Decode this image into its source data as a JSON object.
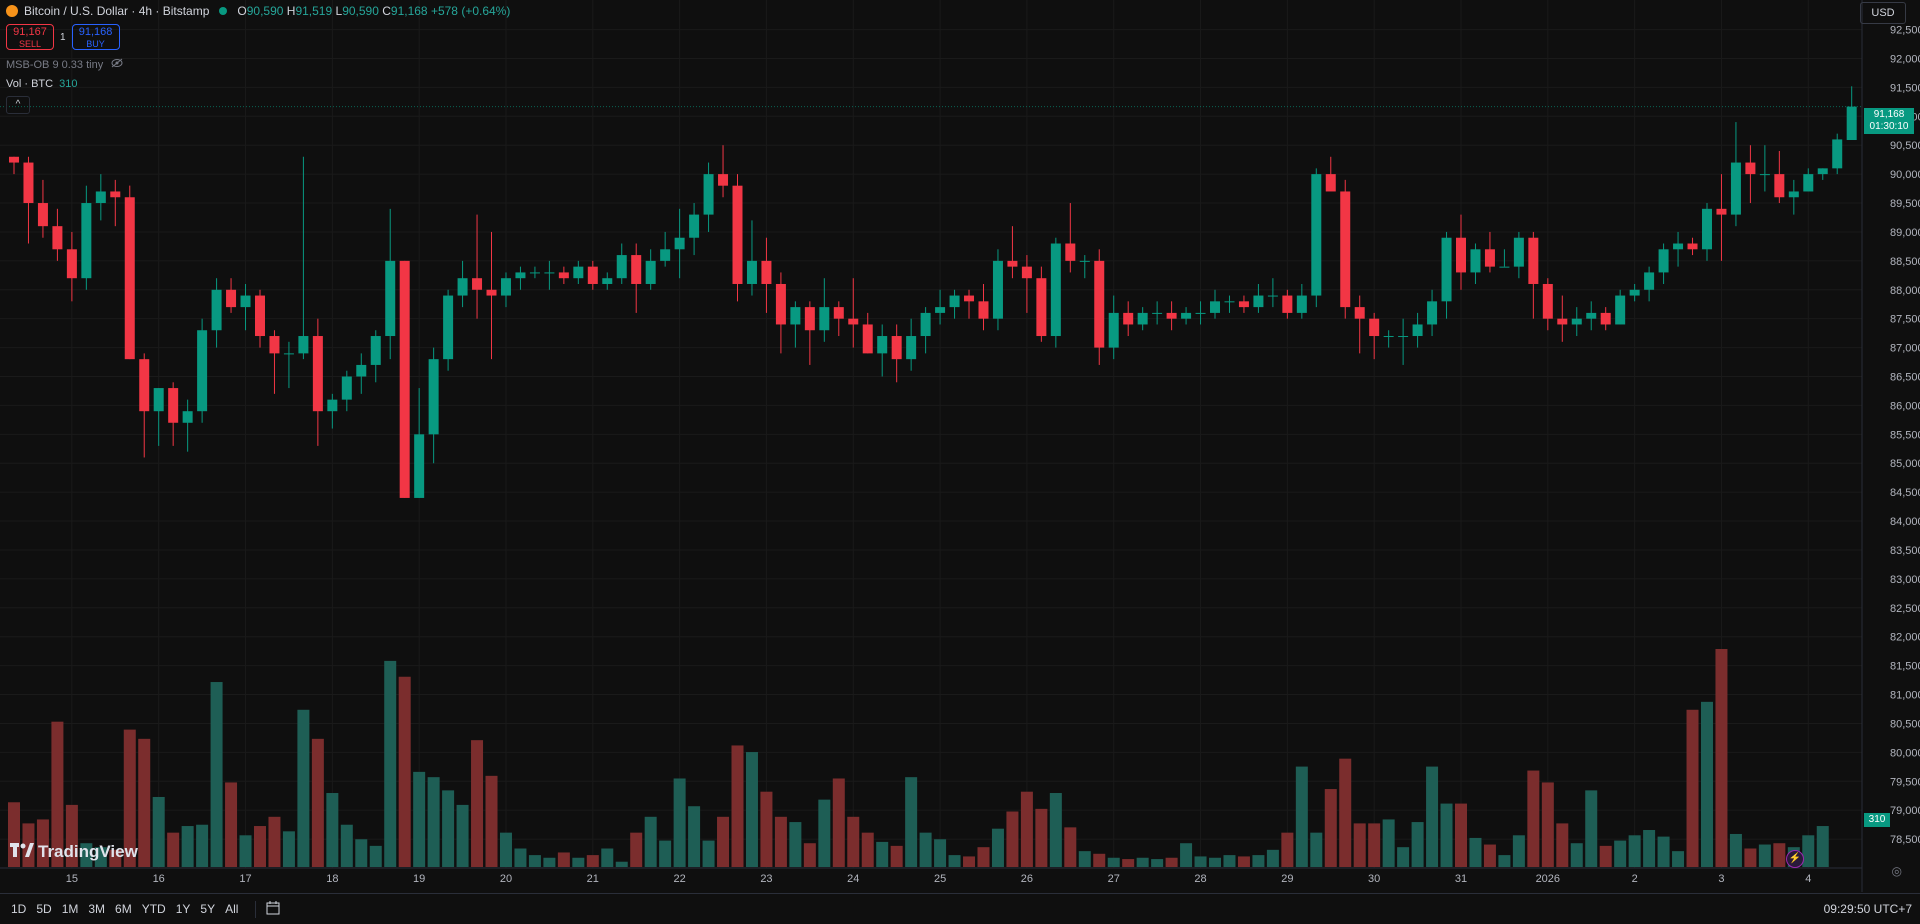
{
  "header": {
    "symbol": "Bitcoin / U.S. Dollar · 4h · Bitstamp",
    "o_label": "O",
    "o_val": "90,590",
    "h_label": "H",
    "h_val": "91,519",
    "l_label": "L",
    "l_val": "90,590",
    "c_label": "C",
    "c_val": "91,168",
    "change": "+578 (+0.64%)"
  },
  "trade": {
    "sell_price": "91,167",
    "sell_label": "SELL",
    "spread": "1",
    "buy_price": "91,168",
    "buy_label": "BUY"
  },
  "indicators": {
    "msb_label": "MSB-OB 9 0.33 tiny",
    "vol_label": "Vol · BTC",
    "vol_value": "310",
    "collapse_glyph": "^"
  },
  "currency": "USD",
  "last_price": {
    "price": "91,168",
    "countdown": "01:30:10"
  },
  "volume_tag": "310",
  "brand": "TradingView",
  "time_ranges": [
    "1D",
    "5D",
    "1M",
    "3M",
    "6M",
    "YTD",
    "1Y",
    "5Y",
    "All"
  ],
  "clock": "09:29:50 UTC+7",
  "colors": {
    "up": "#089981",
    "down": "#f23645",
    "up_vol": "#1e5e55",
    "down_vol": "#7b2d2d",
    "background": "#0f0f0f"
  },
  "chart_data": {
    "type": "candlestick",
    "timeframe": "4h",
    "ylim": [
      78000,
      92700
    ],
    "y_ticks": [
      78500,
      79000,
      79500,
      80000,
      80500,
      81000,
      81500,
      82000,
      82500,
      83000,
      83500,
      84000,
      84500,
      85000,
      85500,
      86000,
      86500,
      87000,
      87500,
      88000,
      88500,
      89000,
      89500,
      90000,
      90500,
      91000,
      91500,
      92000,
      92500
    ],
    "x_labels": [
      {
        "label": "15",
        "index": 4
      },
      {
        "label": "16",
        "index": 10
      },
      {
        "label": "17",
        "index": 16
      },
      {
        "label": "18",
        "index": 22
      },
      {
        "label": "19",
        "index": 28
      },
      {
        "label": "20",
        "index": 34
      },
      {
        "label": "21",
        "index": 40
      },
      {
        "label": "22",
        "index": 46
      },
      {
        "label": "23",
        "index": 52
      },
      {
        "label": "24",
        "index": 58
      },
      {
        "label": "25",
        "index": 64
      },
      {
        "label": "26",
        "index": 70
      },
      {
        "label": "27",
        "index": 76
      },
      {
        "label": "28",
        "index": 82
      },
      {
        "label": "29",
        "index": 88
      },
      {
        "label": "30",
        "index": 94
      },
      {
        "label": "31",
        "index": 100
      },
      {
        "label": "2026",
        "index": 106
      },
      {
        "label": "2",
        "index": 112
      },
      {
        "label": "3",
        "index": 118
      },
      {
        "label": "4",
        "index": 124
      }
    ],
    "candles": [
      [
        90300,
        90300,
        90000,
        90200
      ],
      [
        90200,
        90300,
        88800,
        89500
      ],
      [
        89500,
        89900,
        88900,
        89100
      ],
      [
        89100,
        89400,
        88500,
        88700
      ],
      [
        88700,
        89000,
        87800,
        88200
      ],
      [
        88200,
        89800,
        88000,
        89500
      ],
      [
        89500,
        90000,
        89200,
        89700
      ],
      [
        89700,
        89900,
        89100,
        89600
      ],
      [
        89600,
        89800,
        86800,
        86800
      ],
      [
        86800,
        86900,
        85100,
        85900
      ],
      [
        85900,
        86300,
        85300,
        86300
      ],
      [
        86300,
        86400,
        85300,
        85700
      ],
      [
        85700,
        86100,
        85200,
        85900
      ],
      [
        85900,
        87500,
        85700,
        87300
      ],
      [
        87300,
        88200,
        87000,
        88000
      ],
      [
        88000,
        88200,
        87600,
        87700
      ],
      [
        87700,
        88100,
        87300,
        87900
      ],
      [
        87900,
        88000,
        87000,
        87200
      ],
      [
        87200,
        87300,
        86200,
        86900
      ],
      [
        86900,
        87100,
        86300,
        86900
      ],
      [
        86900,
        90300,
        86800,
        87200
      ],
      [
        87200,
        87500,
        85300,
        85900
      ],
      [
        85900,
        86200,
        85600,
        86100
      ],
      [
        86100,
        86600,
        85900,
        86500
      ],
      [
        86500,
        86900,
        86200,
        86700
      ],
      [
        86700,
        87300,
        86400,
        87200
      ],
      [
        87200,
        89400,
        86800,
        88500
      ],
      [
        88500,
        88500,
        84400,
        84400
      ],
      [
        84400,
        86300,
        84400,
        85500
      ],
      [
        85500,
        87000,
        85000,
        86800
      ],
      [
        86800,
        88000,
        86600,
        87900
      ],
      [
        87900,
        88500,
        87700,
        88200
      ],
      [
        88200,
        89300,
        87500,
        88000
      ],
      [
        88000,
        89000,
        86800,
        87900
      ],
      [
        87900,
        88300,
        87700,
        88200
      ],
      [
        88200,
        88400,
        88000,
        88300
      ],
      [
        88300,
        88400,
        88200,
        88300
      ],
      [
        88300,
        88500,
        88000,
        88300
      ],
      [
        88300,
        88400,
        88100,
        88200
      ],
      [
        88200,
        88500,
        88100,
        88400
      ],
      [
        88400,
        88500,
        88000,
        88100
      ],
      [
        88100,
        88300,
        88000,
        88200
      ],
      [
        88200,
        88800,
        88100,
        88600
      ],
      [
        88600,
        88800,
        87600,
        88100
      ],
      [
        88100,
        88700,
        88000,
        88500
      ],
      [
        88500,
        89000,
        88400,
        88700
      ],
      [
        88700,
        89400,
        88200,
        88900
      ],
      [
        88900,
        89500,
        88600,
        89300
      ],
      [
        89300,
        90200,
        89000,
        90000
      ],
      [
        90000,
        90500,
        89600,
        89800
      ],
      [
        89800,
        90000,
        87800,
        88100
      ],
      [
        88100,
        89200,
        87900,
        88500
      ],
      [
        88500,
        88900,
        87600,
        88100
      ],
      [
        88100,
        88300,
        86900,
        87400
      ],
      [
        87400,
        87800,
        87000,
        87700
      ],
      [
        87700,
        87800,
        86700,
        87300
      ],
      [
        87300,
        88200,
        87100,
        87700
      ],
      [
        87700,
        87800,
        87200,
        87500
      ],
      [
        87500,
        88200,
        87000,
        87400
      ],
      [
        87400,
        87600,
        86900,
        86900
      ],
      [
        86900,
        87400,
        86500,
        87200
      ],
      [
        87200,
        87400,
        86400,
        86800
      ],
      [
        86800,
        87500,
        86600,
        87200
      ],
      [
        87200,
        87700,
        86900,
        87600
      ],
      [
        87600,
        88000,
        87400,
        87700
      ],
      [
        87700,
        88000,
        87500,
        87900
      ],
      [
        87900,
        88000,
        87500,
        87800
      ],
      [
        87800,
        88100,
        87300,
        87500
      ],
      [
        87500,
        88700,
        87300,
        88500
      ],
      [
        88500,
        89100,
        88200,
        88400
      ],
      [
        88400,
        88600,
        87600,
        88200
      ],
      [
        88200,
        88400,
        87100,
        87200
      ],
      [
        87200,
        88900,
        87000,
        88800
      ],
      [
        88800,
        89500,
        88300,
        88500
      ],
      [
        88500,
        88600,
        88200,
        88500
      ],
      [
        88500,
        88700,
        86700,
        87000
      ],
      [
        87000,
        87900,
        86800,
        87600
      ],
      [
        87600,
        87800,
        87200,
        87400
      ],
      [
        87400,
        87700,
        87300,
        87600
      ],
      [
        87600,
        87800,
        87400,
        87600
      ],
      [
        87600,
        87800,
        87300,
        87500
      ],
      [
        87500,
        87700,
        87400,
        87600
      ],
      [
        87600,
        87800,
        87400,
        87600
      ],
      [
        87600,
        88000,
        87500,
        87800
      ],
      [
        87800,
        87900,
        87600,
        87800
      ],
      [
        87800,
        87900,
        87600,
        87700
      ],
      [
        87700,
        88100,
        87600,
        87900
      ],
      [
        87900,
        88200,
        87700,
        87900
      ],
      [
        87900,
        88000,
        87500,
        87600
      ],
      [
        87600,
        88100,
        87500,
        87900
      ],
      [
        87900,
        90100,
        87700,
        90000
      ],
      [
        90000,
        90300,
        89800,
        89700
      ],
      [
        89700,
        89900,
        87500,
        87700
      ],
      [
        87700,
        87900,
        86900,
        87500
      ],
      [
        87500,
        87600,
        86800,
        87200
      ],
      [
        87200,
        87300,
        87000,
        87200
      ],
      [
        87200,
        87500,
        86700,
        87200
      ],
      [
        87200,
        87600,
        87000,
        87400
      ],
      [
        87400,
        88000,
        87200,
        87800
      ],
      [
        87800,
        89000,
        87500,
        88900
      ],
      [
        88900,
        89300,
        88000,
        88300
      ],
      [
        88300,
        88800,
        88100,
        88700
      ],
      [
        88700,
        89000,
        88300,
        88400
      ],
      [
        88400,
        88700,
        88400,
        88400
      ],
      [
        88400,
        89000,
        88200,
        88900
      ],
      [
        88900,
        89000,
        87500,
        88100
      ],
      [
        88100,
        88200,
        87300,
        87500
      ],
      [
        87500,
        87900,
        87100,
        87400
      ],
      [
        87400,
        87700,
        87200,
        87500
      ],
      [
        87500,
        87800,
        87300,
        87600
      ],
      [
        87600,
        87700,
        87300,
        87400
      ],
      [
        87400,
        88000,
        87400,
        87900
      ],
      [
        87900,
        88100,
        87800,
        88000
      ],
      [
        88000,
        88400,
        87800,
        88300
      ],
      [
        88300,
        88800,
        88100,
        88700
      ],
      [
        88700,
        89000,
        88400,
        88800
      ],
      [
        88800,
        88900,
        88600,
        88700
      ],
      [
        88700,
        89500,
        88500,
        89400
      ],
      [
        89400,
        90000,
        88500,
        89300
      ],
      [
        89300,
        90900,
        89100,
        90200
      ],
      [
        90200,
        90500,
        89500,
        90000
      ],
      [
        90000,
        90500,
        89700,
        90000
      ],
      [
        90000,
        90400,
        89500,
        89600
      ],
      [
        89600,
        89900,
        89300,
        89700
      ],
      [
        89700,
        90100,
        89700,
        90000
      ],
      [
        90000,
        90100,
        89900,
        90100
      ],
      [
        90100,
        90700,
        90000,
        90600
      ],
      [
        90590,
        91519,
        90590,
        91168
      ]
    ],
    "volume": [
      490,
      330,
      360,
      1100,
      470,
      180,
      150,
      130,
      1040,
      970,
      530,
      260,
      310,
      320,
      1400,
      640,
      240,
      310,
      380,
      270,
      1190,
      970,
      560,
      320,
      210,
      160,
      1560,
      1440,
      720,
      680,
      580,
      470,
      960,
      690,
      260,
      140,
      90,
      70,
      110,
      70,
      90,
      140,
      40,
      260,
      380,
      200,
      670,
      460,
      200,
      380,
      920,
      870,
      570,
      380,
      340,
      180,
      510,
      670,
      380,
      260,
      190,
      160,
      680,
      260,
      210,
      90,
      80,
      150,
      290,
      420,
      570,
      440,
      560,
      300,
      120,
      100,
      70,
      60,
      70,
      60,
      70,
      180,
      80,
      70,
      90,
      80,
      90,
      130,
      260,
      760,
      260,
      590,
      820,
      330,
      330,
      360,
      150,
      340,
      760,
      480,
      480,
      220,
      170,
      90,
      240,
      730,
      640,
      330,
      180,
      580,
      160,
      200,
      240,
      280,
      230,
      120,
      1190,
      1250,
      1650,
      250,
      140,
      170,
      180,
      150,
      240,
      310
    ]
  }
}
